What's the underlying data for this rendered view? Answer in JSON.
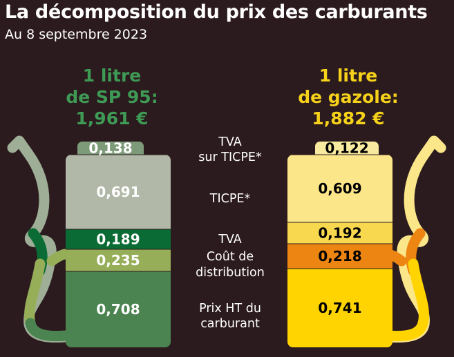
{
  "title": "La décomposition du prix des carburants",
  "subtitle": "Au 8 septembre 2023",
  "colors": {
    "background": "#2b1b1e",
    "sp95_header": "#3e9a55",
    "gazole_header": "#f6d21a"
  },
  "chart_data": {
    "type": "bar",
    "subtype": "stacked-pump-illustration",
    "categories": [
      "TVA sur TICPE*",
      "TICPE*",
      "TVA",
      "Coût de distribution",
      "Prix HT du carburant"
    ],
    "category_labels": [
      [
        "TVA",
        "sur TICPE*"
      ],
      [
        "TICPE*"
      ],
      [
        "TVA"
      ],
      [
        "Coût de",
        "distribution"
      ],
      [
        "Prix HT du",
        "carburant"
      ]
    ],
    "series": [
      {
        "name": "SP 95",
        "header_lines": [
          "1 litre",
          "de SP 95:",
          "1,961 €"
        ],
        "total": 1.961,
        "values": [
          0.138,
          0.691,
          0.189,
          0.235,
          0.708
        ],
        "labels": [
          "0,138",
          "0,691",
          "0,189",
          "0,235",
          "0,708"
        ],
        "colors": [
          "#7d9a79",
          "#b1b8a7",
          "#0a6b34",
          "#97ae59",
          "#4b8450"
        ],
        "label_colors": [
          "#ffffff",
          "#ffffff",
          "#ffffff",
          "#ffffff",
          "#ffffff"
        ]
      },
      {
        "name": "Gazole",
        "header_lines": [
          "1 litre",
          "de gazole:",
          "1,882 €"
        ],
        "total": 1.882,
        "values": [
          0.122,
          0.609,
          0.192,
          0.218,
          0.741
        ],
        "labels": [
          "0,122",
          "0,609",
          "0,192",
          "0,218",
          "0,741"
        ],
        "colors": [
          "#f8ea9e",
          "#fbe68a",
          "#f8d84f",
          "#ec8511",
          "#ffd400"
        ],
        "label_colors": [
          "#000000",
          "#000000",
          "#000000",
          "#000000",
          "#000000"
        ]
      }
    ]
  }
}
